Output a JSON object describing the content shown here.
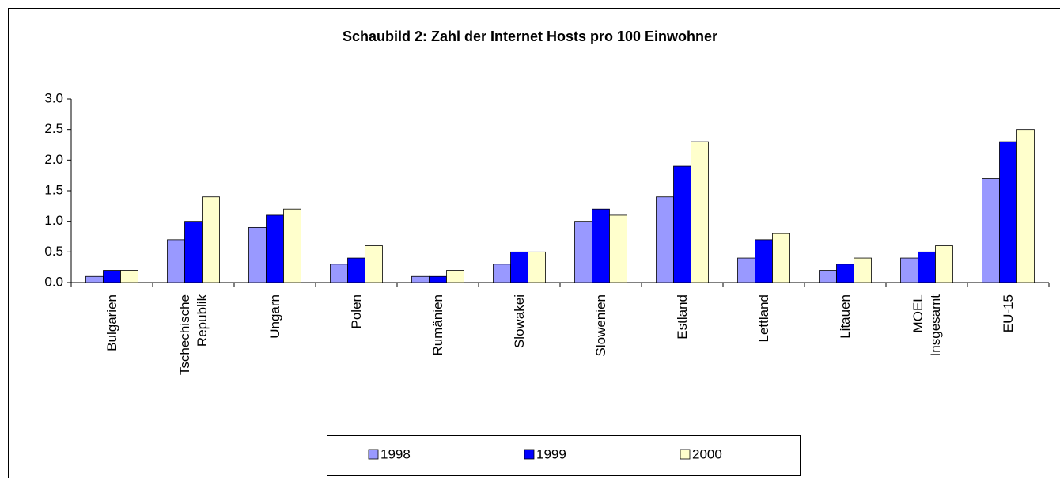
{
  "chart_data": {
    "type": "bar",
    "title": "Schaubild 2: Zahl der Internet Hosts pro 100 Einwohner",
    "categories": [
      "Bulgarien",
      "Tschechische\nRepublik",
      "Ungarn",
      "Polen",
      "Rumänien",
      "Slowakei",
      "Slowenien",
      "Estland",
      "Lettland",
      "Litauen",
      "MOEL\nInsgesamt",
      "EU-15"
    ],
    "series": [
      {
        "name": "1998",
        "color": "#9999ff",
        "values": [
          0.1,
          0.7,
          0.9,
          0.3,
          0.1,
          0.3,
          1.0,
          1.4,
          0.4,
          0.2,
          0.4,
          1.7
        ]
      },
      {
        "name": "1999",
        "color": "#0000ff",
        "values": [
          0.2,
          1.0,
          1.1,
          0.4,
          0.1,
          0.5,
          1.2,
          1.9,
          0.7,
          0.3,
          0.5,
          2.3
        ]
      },
      {
        "name": "2000",
        "color": "#ffffcc",
        "values": [
          0.2,
          1.4,
          1.2,
          0.6,
          0.2,
          0.5,
          1.1,
          2.3,
          0.8,
          0.4,
          0.6,
          2.5
        ]
      }
    ],
    "ylim": [
      0,
      3
    ],
    "yticks": [
      {
        "value": 0,
        "label": "0.0"
      },
      0.5,
      {
        "value": 1,
        "label": "1.0"
      },
      1.5,
      {
        "value": 2,
        "label": "2.0"
      },
      2.5,
      {
        "value": 3,
        "label": "3.0"
      }
    ],
    "legend": "bottom"
  }
}
